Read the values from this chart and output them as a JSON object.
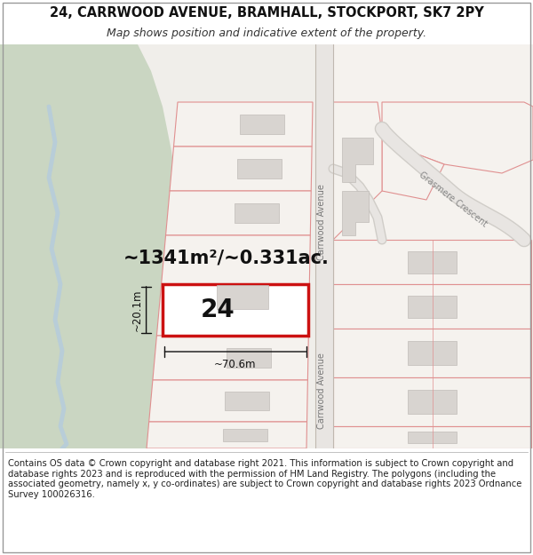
{
  "title_line1": "24, CARRWOOD AVENUE, BRAMHALL, STOCKPORT, SK7 2PY",
  "title_line2": "Map shows position and indicative extent of the property.",
  "footer_text": "Contains OS data © Crown copyright and database right 2021. This information is subject to Crown copyright and database rights 2023 and is reproduced with the permission of HM Land Registry. The polygons (including the associated geometry, namely x, y co-ordinates) are subject to Crown copyright and database rights 2023 Ordnance Survey 100026316.",
  "area_text": "~1341m²/~0.331ac.",
  "label_24": "24",
  "dim_width": "~70.6m",
  "dim_height": "~20.1m",
  "title_fontsize": 10.5,
  "subtitle_fontsize": 9,
  "footer_fontsize": 7.2,
  "area_fontsize": 15,
  "label_fontsize": 20,
  "dim_fontsize": 8.5,
  "road_label_fontsize": 7,
  "grasmere_label_fontsize": 7
}
